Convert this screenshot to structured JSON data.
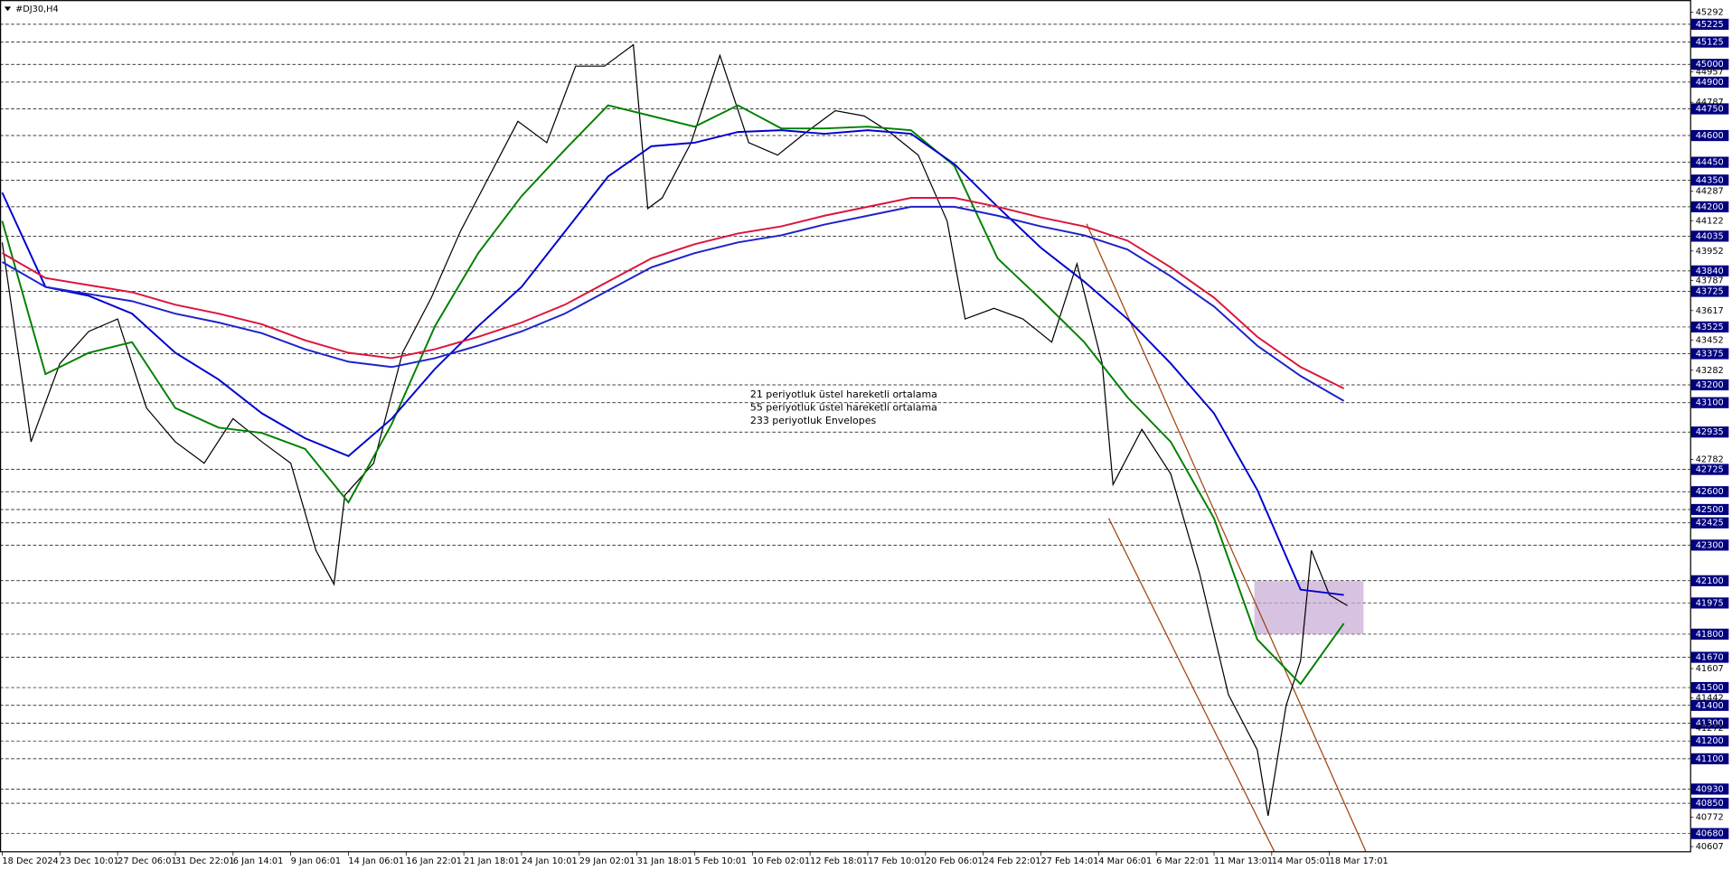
{
  "chart_data": {
    "type": "line",
    "title": "#DJ30,H4",
    "xlim": [
      0,
      468
    ],
    "ylim": [
      40581,
      45361
    ],
    "xticks": [
      {
        "value": 0,
        "label": "18 Dec 2024"
      },
      {
        "value": 16,
        "label": "23 Dec 10:01"
      },
      {
        "value": 32,
        "label": "27 Dec 06:01"
      },
      {
        "value": 48,
        "label": "31 Dec 22:01"
      },
      {
        "value": 64,
        "label": "6 Jan 14:01"
      },
      {
        "value": 80,
        "label": "9 Jan 06:01"
      },
      {
        "value": 96,
        "label": "14 Jan 06:01"
      },
      {
        "value": 112,
        "label": "16 Jan 22:01"
      },
      {
        "value": 128,
        "label": "21 Jan 18:01"
      },
      {
        "value": 144,
        "label": "24 Jan 10:01"
      },
      {
        "value": 160,
        "label": "29 Jan 02:01"
      },
      {
        "value": 176,
        "label": "31 Jan 18:01"
      },
      {
        "value": 192,
        "label": "5 Feb 10:01"
      },
      {
        "value": 208,
        "label": "10 Feb 02:01"
      },
      {
        "value": 224,
        "label": "12 Feb 18:01"
      },
      {
        "value": 240,
        "label": "17 Feb 10:01"
      },
      {
        "value": 256,
        "label": "20 Feb 06:01"
      },
      {
        "value": 272,
        "label": "24 Feb 22:01"
      },
      {
        "value": 288,
        "label": "27 Feb 14:01"
      },
      {
        "value": 304,
        "label": "4 Mar 06:01"
      },
      {
        "value": 320,
        "label": "6 Mar 22:01"
      },
      {
        "value": 336,
        "label": "11 Mar 13:01"
      },
      {
        "value": 352,
        "label": "14 Mar 05:01"
      },
      {
        "value": 368,
        "label": "18 Mar 17:01"
      }
    ],
    "yticks": [
      45292,
      44957,
      44787,
      44287,
      44122,
      43952,
      43787,
      43617,
      43452,
      43282,
      42782,
      41607,
      41442,
      41272,
      40772,
      40607
    ],
    "levels": [
      45225,
      45125,
      45000,
      44900,
      44750,
      44600,
      44450,
      44350,
      44200,
      44035,
      43840,
      43725,
      43525,
      43375,
      43200,
      43100,
      42935,
      42725,
      42600,
      42500,
      42425,
      42300,
      42100,
      41975,
      41800,
      41670,
      41500,
      41400,
      41300,
      41200,
      41100,
      40930,
      40850,
      40680
    ],
    "series": [
      {
        "color": "#000000",
        "x": [
          0,
          8,
          16,
          24,
          32,
          40,
          48,
          56,
          64,
          72,
          80,
          87,
          92,
          95,
          103,
          111,
          119,
          127,
          135,
          143,
          151,
          159,
          167,
          175,
          179,
          183,
          191,
          199,
          207,
          215,
          223,
          231,
          239,
          246,
          254,
          262,
          267,
          275,
          283,
          291,
          298,
          305,
          308,
          316,
          324,
          332,
          340,
          348,
          351,
          356,
          360,
          363,
          368,
          373
        ],
        "values": [
          44000,
          42880,
          43320,
          43500,
          43570,
          43070,
          42880,
          42760,
          43010,
          42880,
          42760,
          42270,
          42080,
          42580,
          42760,
          43380,
          43690,
          44060,
          44370,
          44680,
          44560,
          44990,
          44990,
          45110,
          44190,
          44250,
          44560,
          45050,
          44560,
          44490,
          44620,
          44740,
          44710,
          44620,
          44490,
          44120,
          43570,
          43630,
          43570,
          43440,
          43880,
          43320,
          42640,
          42950,
          42700,
          42140,
          41460,
          41150,
          40780,
          41400,
          41650,
          42270,
          42020,
          41960
        ]
      },
      {
        "name": "21 periyotluk üstel hareketli ortalama",
        "color": "#008000",
        "x": [
          0,
          12,
          24,
          36,
          48,
          60,
          72,
          84,
          96,
          108,
          120,
          132,
          144,
          156,
          168,
          180,
          192,
          204,
          216,
          228,
          240,
          252,
          264,
          276,
          288,
          300,
          312,
          324,
          336,
          348,
          360,
          372
        ],
        "values": [
          44120,
          43260,
          43380,
          43440,
          43070,
          42960,
          42930,
          42840,
          42540,
          42980,
          43530,
          43940,
          44260,
          44520,
          44770,
          44710,
          44650,
          44770,
          44640,
          44640,
          44650,
          44630,
          44430,
          43910,
          43680,
          43440,
          43130,
          42880,
          42450,
          41770,
          41520,
          41860
        ]
      },
      {
        "name": "55 periyotluk üstel hareketli ortalama",
        "color": "#0000cd",
        "x": [
          0,
          12,
          24,
          36,
          48,
          60,
          72,
          84,
          96,
          108,
          120,
          132,
          144,
          156,
          168,
          180,
          192,
          204,
          216,
          228,
          240,
          252,
          264,
          276,
          288,
          300,
          312,
          324,
          336,
          348,
          360,
          372
        ],
        "values": [
          44280,
          43750,
          43700,
          43600,
          43380,
          43230,
          43040,
          42900,
          42800,
          43010,
          43290,
          43530,
          43750,
          44060,
          44370,
          44540,
          44560,
          44620,
          44630,
          44610,
          44630,
          44610,
          44440,
          44200,
          43970,
          43780,
          43570,
          43320,
          43040,
          42610,
          42050,
          42020
        ]
      },
      {
        "name": "233 periyotluk Envelopes",
        "color": "#dc143c",
        "x": [
          0,
          12,
          24,
          36,
          48,
          60,
          72,
          84,
          96,
          108,
          120,
          132,
          144,
          156,
          168,
          180,
          192,
          204,
          216,
          228,
          240,
          252,
          264,
          276,
          288,
          300,
          312,
          324,
          336,
          348,
          360,
          372
        ],
        "values": [
          43940,
          43800,
          43760,
          43720,
          43650,
          43600,
          43540,
          43450,
          43380,
          43350,
          43400,
          43470,
          43550,
          43650,
          43780,
          43910,
          43990,
          44050,
          44090,
          44150,
          44200,
          44250,
          44250,
          44200,
          44140,
          44090,
          44010,
          43860,
          43690,
          43470,
          43300,
          43180
        ]
      },
      {
        "color": "#1e22c8",
        "x": [
          0,
          12,
          24,
          36,
          48,
          60,
          72,
          84,
          96,
          108,
          120,
          132,
          144,
          156,
          168,
          180,
          192,
          204,
          216,
          228,
          240,
          252,
          264,
          276,
          288,
          300,
          312,
          324,
          336,
          348,
          360,
          372
        ],
        "values": [
          43890,
          43750,
          43710,
          43670,
          43600,
          43550,
          43490,
          43400,
          43330,
          43300,
          43350,
          43420,
          43500,
          43600,
          43730,
          43860,
          43940,
          44000,
          44040,
          44100,
          44150,
          44200,
          44200,
          44150,
          44090,
          44040,
          43960,
          43810,
          43640,
          43420,
          43250,
          43110
        ]
      }
    ]
  }
}
